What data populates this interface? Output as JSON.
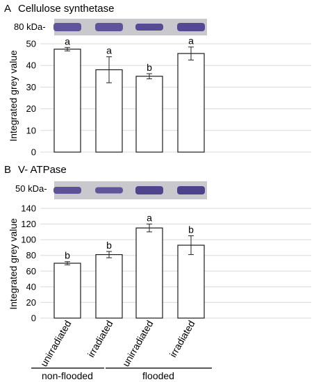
{
  "chart_data": [
    {
      "type": "bar",
      "panel": "A",
      "title": "Cellulose synthetase",
      "blot_label": "80 kDa-",
      "ylabel": "Integrated grey value",
      "ylim": [
        0,
        50
      ],
      "yticks": [
        0,
        10,
        20,
        30,
        40,
        50
      ],
      "values": [
        47.5,
        38,
        35,
        45.5
      ],
      "errors": [
        0.8,
        6,
        1.2,
        3
      ],
      "significance": [
        "a",
        "a",
        "b",
        "a"
      ],
      "band_colors": [
        "#5b4f9a",
        "#5a4e98",
        "#4f438f",
        "#4e428e"
      ]
    },
    {
      "type": "bar",
      "panel": "B",
      "title": "V- ATPase",
      "blot_label": "50 kDa-",
      "ylabel": "Integrated grey value",
      "ylim": [
        0,
        140
      ],
      "yticks": [
        0,
        20,
        40,
        60,
        80,
        100,
        120,
        140
      ],
      "categories": [
        "unirradiated",
        "irradiated",
        "unirradiated",
        "irradiated"
      ],
      "groups": [
        "non-flooded",
        "flooded"
      ],
      "values": [
        70,
        81,
        115,
        93
      ],
      "errors": [
        2,
        4,
        5,
        12
      ],
      "significance": [
        "b",
        "b",
        "a",
        "b"
      ],
      "band_colors": [
        "#574b95",
        "#5a4f98",
        "#493d8a",
        "#473b88"
      ]
    }
  ],
  "colors": {
    "bar_fill": "#ffffff",
    "bar_stroke": "#1a1a1a",
    "grid": "#d9d9d9",
    "blot_bg": "#c9c8cc"
  }
}
